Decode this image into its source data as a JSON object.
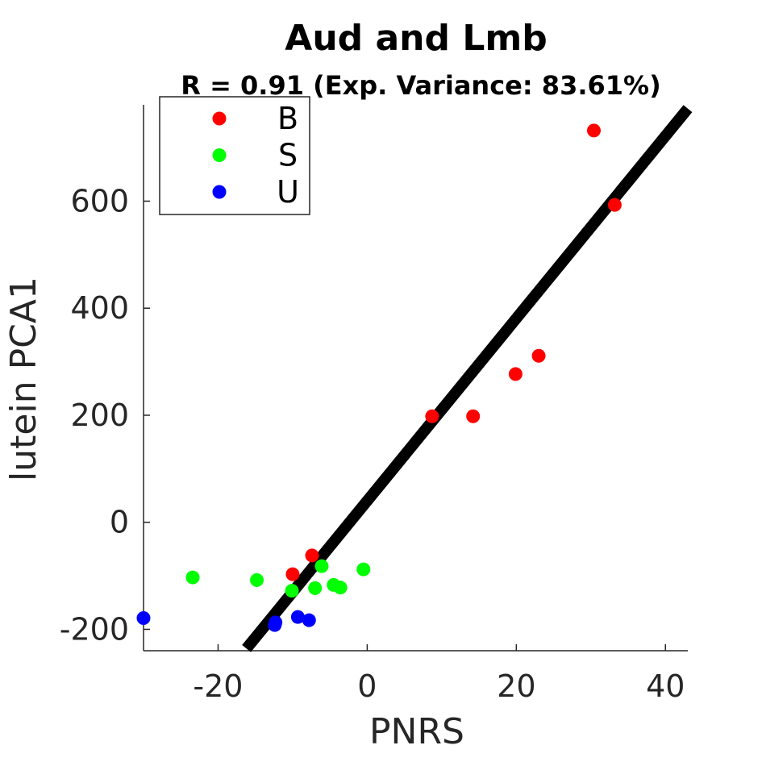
{
  "chart_data": {
    "type": "scatter",
    "title": "Aud and Lmb",
    "subtitle": "R = 0.91 (Exp. Variance: 83.61%)",
    "xlabel": "PNRS",
    "ylabel": "lutein PCA1",
    "xlim": [
      -30,
      43
    ],
    "ylim": [
      -240,
      780
    ],
    "xticks": [
      -20,
      0,
      20,
      40
    ],
    "yticks": [
      -200,
      0,
      200,
      400,
      600
    ],
    "legend_position": "top-left",
    "series": [
      {
        "name": "B",
        "color": "#ff0000",
        "points": [
          [
            -7.4,
            -62
          ],
          [
            -10.0,
            -97
          ],
          [
            8.7,
            198
          ],
          [
            14.2,
            198
          ],
          [
            19.9,
            277
          ],
          [
            23.0,
            311
          ],
          [
            30.4,
            732
          ],
          [
            33.2,
            593
          ]
        ]
      },
      {
        "name": "S",
        "color": "#00ff00",
        "points": [
          [
            -23.4,
            -103
          ],
          [
            -14.8,
            -108
          ],
          [
            -6.1,
            -82
          ],
          [
            -0.5,
            -88
          ],
          [
            -7.0,
            -123
          ],
          [
            -4.5,
            -117
          ],
          [
            -3.6,
            -122
          ],
          [
            -10.1,
            -128
          ]
        ]
      },
      {
        "name": "U",
        "color": "#0000ff",
        "points": [
          [
            -30.0,
            -179
          ],
          [
            -12.4,
            -192
          ],
          [
            -12.3,
            -187
          ],
          [
            -9.3,
            -177
          ],
          [
            -7.8,
            -183
          ]
        ]
      }
    ],
    "fit_line": {
      "color": "#000000",
      "points": [
        [
          -16.2,
          -236
        ],
        [
          43,
          773
        ]
      ]
    }
  }
}
